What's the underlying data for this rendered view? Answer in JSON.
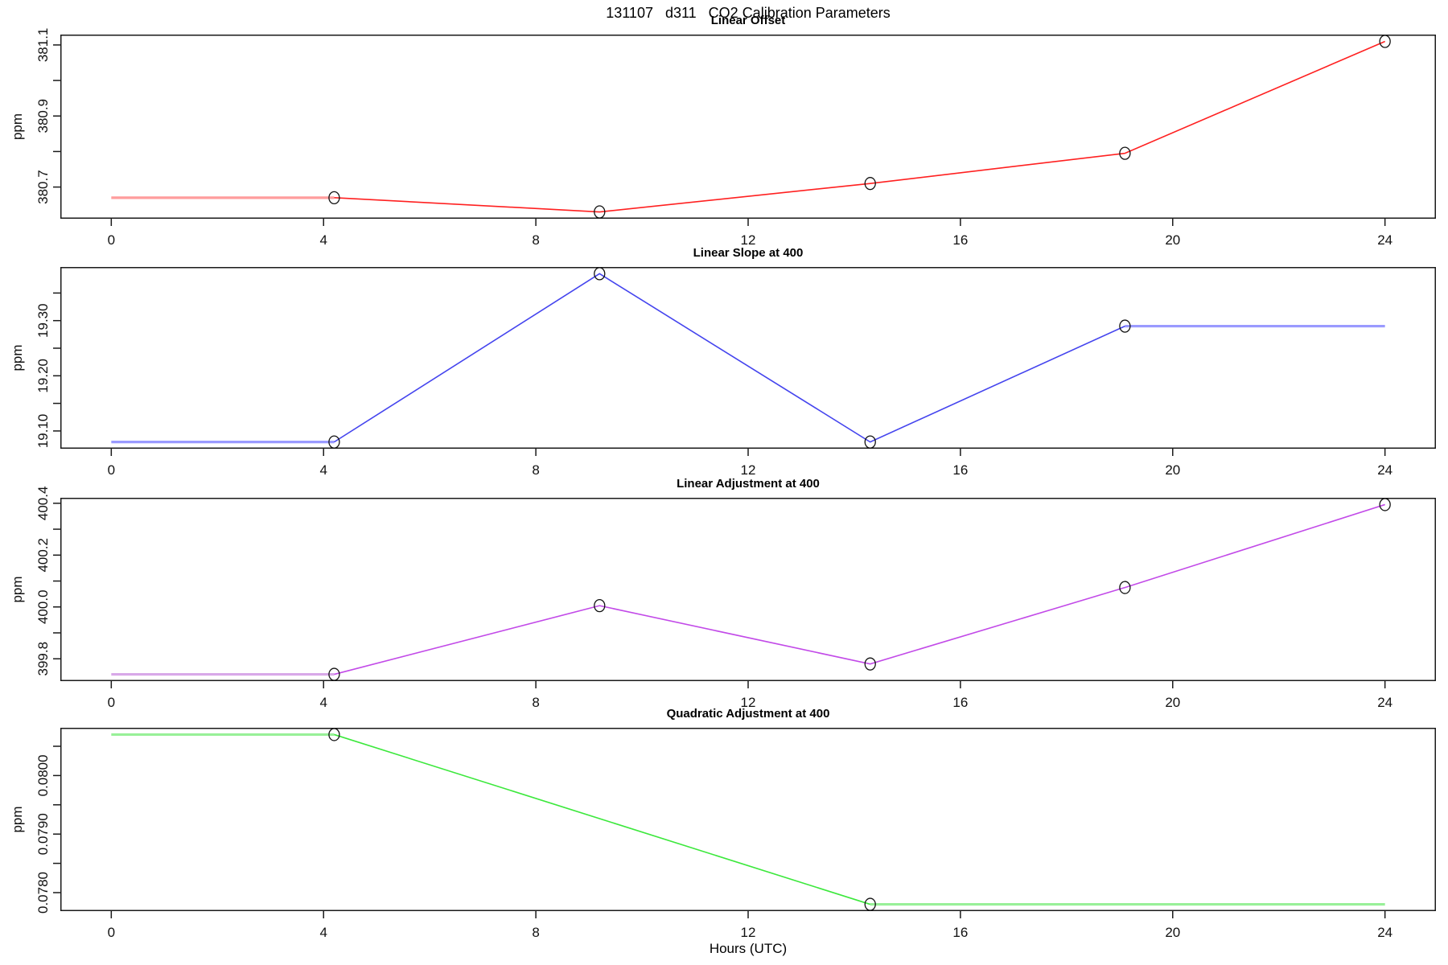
{
  "page_title": "131107   d311   CO2 Calibration Parameters",
  "xlabel": "Hours (UTC)",
  "axis_color": "#1a1a1a",
  "chart_data": [
    {
      "type": "line",
      "title": "Linear Offset",
      "ylabel": "ppm",
      "series_color": "#ff2020",
      "ext_color": "#ff9c9c",
      "marker": "open-circle",
      "x_range": [
        -0.96,
        24.96
      ],
      "x_ticks": [
        0,
        4,
        8,
        12,
        16,
        20,
        24
      ],
      "ylim": [
        380.6108,
        381.1292
      ],
      "y_ticks": [
        380.7,
        380.8,
        380.9,
        381.0,
        381.1
      ],
      "y_tick_labels": [
        "380.7",
        "",
        "380.9",
        "",
        "381.1"
      ],
      "main_line": [
        [
          4.2,
          380.67
        ],
        [
          9.2,
          380.63
        ],
        [
          14.3,
          380.71
        ],
        [
          19.1,
          380.795
        ],
        [
          24,
          381.11
        ]
      ],
      "ext_lines": [
        [
          [
            0,
            380.67
          ],
          [
            4.2,
            380.67
          ]
        ]
      ],
      "markers": [
        [
          4.2,
          380.67
        ],
        [
          9.2,
          380.63
        ],
        [
          14.3,
          380.71
        ],
        [
          19.1,
          380.795
        ],
        [
          24,
          381.11
        ]
      ]
    },
    {
      "type": "line",
      "title": "Linear Slope at 400",
      "ylabel": "ppm",
      "series_color": "#4444ee",
      "ext_color": "#9a9aff",
      "marker": "open-circle",
      "x_range": [
        -0.96,
        24.96
      ],
      "x_ticks": [
        0,
        4,
        8,
        12,
        16,
        20,
        24
      ],
      "ylim": [
        19.0678,
        19.3972
      ],
      "y_ticks": [
        19.1,
        19.15,
        19.2,
        19.25,
        19.3,
        19.35
      ],
      "y_tick_labels": [
        "19.10",
        "",
        "19.20",
        "",
        "19.30",
        ""
      ],
      "main_line": [
        [
          4.2,
          19.08
        ],
        [
          9.2,
          19.385
        ],
        [
          14.3,
          19.08
        ],
        [
          19.1,
          19.29
        ]
      ],
      "ext_lines": [
        [
          [
            0,
            19.08
          ],
          [
            4.2,
            19.08
          ]
        ],
        [
          [
            19.1,
            19.29
          ],
          [
            24,
            19.29
          ]
        ]
      ],
      "markers": [
        [
          4.2,
          19.08
        ],
        [
          9.2,
          19.385
        ],
        [
          14.3,
          19.08
        ],
        [
          19.1,
          19.29
        ]
      ]
    },
    {
      "type": "line",
      "title": "Linear Adjustment at 400",
      "ylabel": "ppm",
      "series_color": "#c24ae8",
      "ext_color": "#d8a8e8",
      "marker": "open-circle",
      "x_range": [
        -0.96,
        24.96
      ],
      "x_ticks": [
        0,
        4,
        8,
        12,
        16,
        20,
        24
      ],
      "ylim": [
        399.7138,
        400.4212
      ],
      "y_ticks": [
        399.8,
        399.9,
        400.0,
        400.1,
        400.2,
        400.3,
        400.4
      ],
      "y_tick_labels": [
        "399.8",
        "",
        "400.0",
        "",
        "400.2",
        "",
        "400.4"
      ],
      "main_line": [
        [
          4.2,
          399.74
        ],
        [
          9.2,
          400.005
        ],
        [
          14.3,
          399.78
        ],
        [
          19.1,
          400.075
        ],
        [
          24,
          400.395
        ]
      ],
      "ext_lines": [
        [
          [
            0,
            399.74
          ],
          [
            4.2,
            399.74
          ]
        ]
      ],
      "markers": [
        [
          4.2,
          399.74
        ],
        [
          9.2,
          400.005
        ],
        [
          14.3,
          399.78
        ],
        [
          19.1,
          400.075
        ],
        [
          24,
          400.395
        ]
      ]
    },
    {
      "type": "line",
      "title": "Quadratic Adjustment at 400",
      "ylabel": "ppm",
      "series_color": "#3ce83c",
      "ext_color": "#98f098",
      "marker": "open-circle",
      "x_range": [
        -0.96,
        24.96
      ],
      "x_ticks": [
        0,
        4,
        8,
        12,
        16,
        20,
        24
      ],
      "ylim": [
        0.077684,
        0.080816
      ],
      "y_ticks": [
        0.078,
        0.0785,
        0.079,
        0.0795,
        0.08,
        0.0805
      ],
      "y_tick_labels": [
        "0.0780",
        "",
        "0.0790",
        "",
        "0.0800",
        ""
      ],
      "main_line": [
        [
          4.2,
          0.0807
        ],
        [
          14.3,
          0.0778
        ]
      ],
      "ext_lines": [
        [
          [
            0,
            0.0807
          ],
          [
            4.2,
            0.0807
          ]
        ],
        [
          [
            14.3,
            0.0778
          ],
          [
            24,
            0.0778
          ]
        ]
      ],
      "markers": [
        [
          4.2,
          0.0807
        ],
        [
          14.3,
          0.0778
        ]
      ]
    }
  ]
}
